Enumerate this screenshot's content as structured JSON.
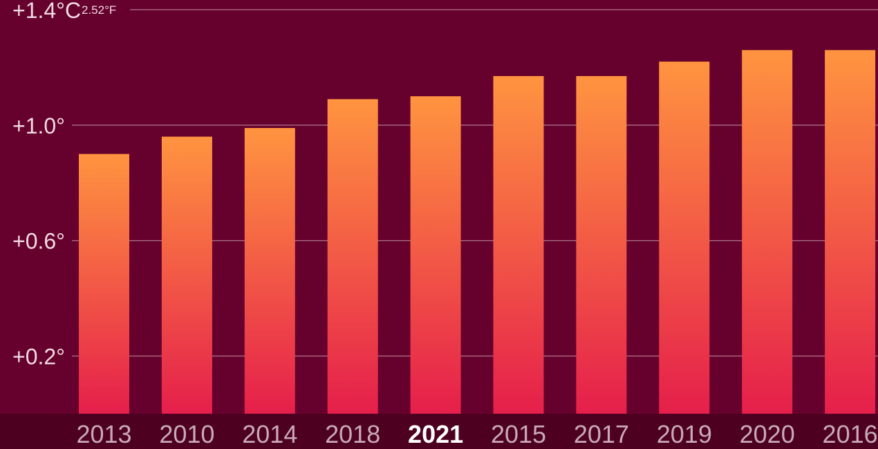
{
  "chart_data": {
    "type": "bar",
    "title": "",
    "xlabel": "",
    "ylabel": "",
    "unit": "°C",
    "categories": [
      "2013",
      "2010",
      "2014",
      "2018",
      "2021",
      "2015",
      "2017",
      "2019",
      "2020",
      "2016"
    ],
    "values": [
      0.9,
      0.96,
      0.99,
      1.09,
      1.1,
      1.17,
      1.17,
      1.22,
      1.26,
      1.26
    ],
    "highlighted_category": "2021",
    "y_ticks": [
      {
        "value": 1.4,
        "label": "+1.4°C",
        "sublabel": "2.52°F"
      },
      {
        "value": 1.0,
        "label": "+1.0°"
      },
      {
        "value": 0.6,
        "label": "+0.6°"
      },
      {
        "value": 0.2,
        "label": "+0.2°"
      }
    ],
    "ylim": [
      0,
      1.4
    ],
    "grid": true,
    "colors": {
      "background": "#66002c",
      "axis_band": "#4e0021",
      "bar_top": "#ff9440",
      "bar_bottom": "#e51f4b",
      "gridline": "#a4667f",
      "tick_label": "#c9aab7",
      "highlight_label": "#ffffff"
    }
  }
}
